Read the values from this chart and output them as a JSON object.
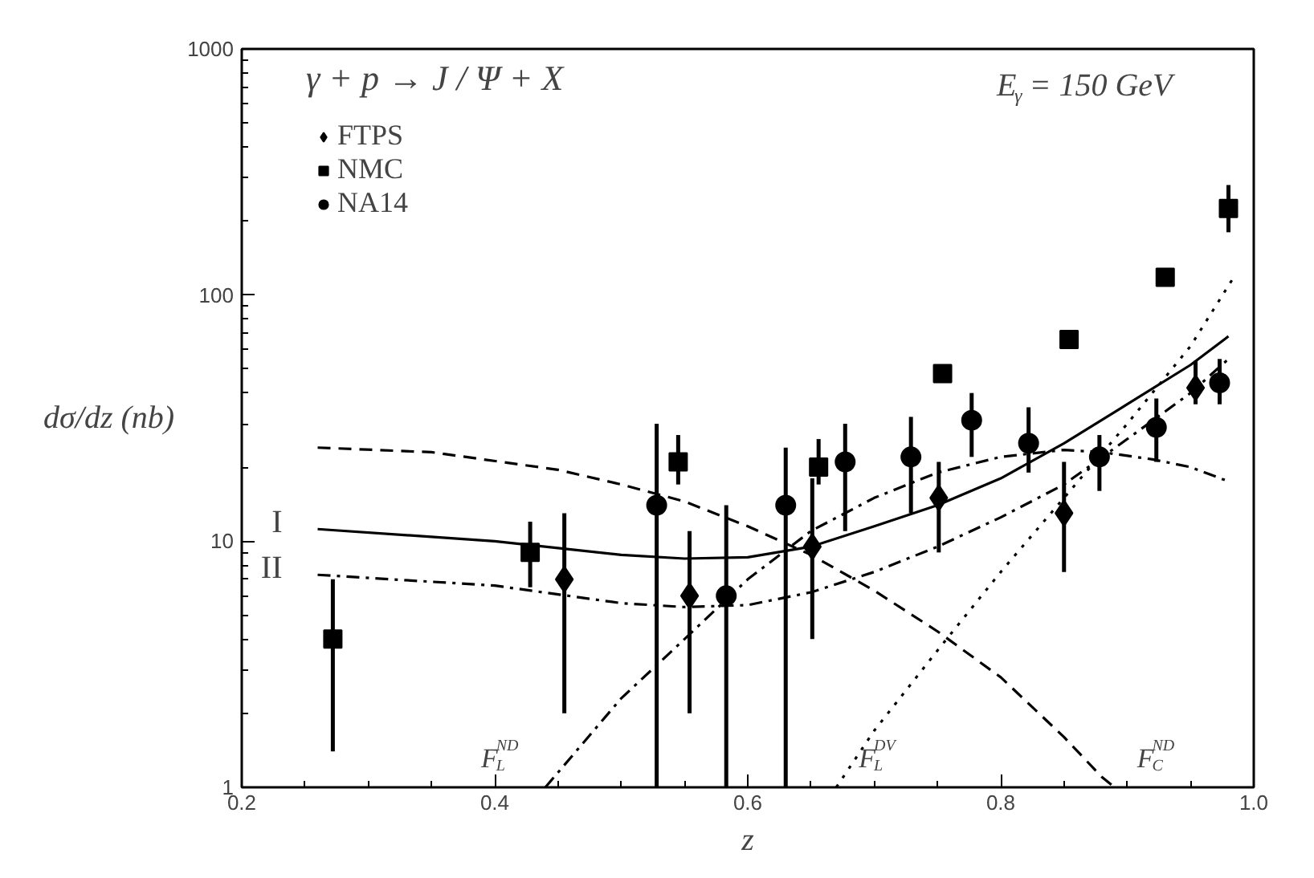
{
  "chart_data": {
    "type": "scatter",
    "xlabel": "z",
    "ylabel": "dσ/dz (nb)",
    "log": "y",
    "grid": false,
    "legend": "top left",
    "xlim": [
      0.2,
      1.0
    ],
    "ylim": [
      1,
      1000
    ],
    "xticks": [
      0.2,
      0.4,
      0.6,
      0.8,
      {
        "value": 1.0,
        "label": "1.0"
      }
    ],
    "yticks": [
      1,
      10,
      100,
      1000
    ],
    "annotations": [
      "γ + p → J / Ψ + X",
      "E$_{γ}$ = 150 GeV",
      "I",
      "II"
    ],
    "series": [
      {
        "name": "FTPS",
        "marker": "diamond",
        "color": "#000000",
        "x": [
          0.455,
          0.554,
          0.651,
          0.751,
          0.85,
          0.954
        ],
        "values": [
          7,
          6,
          9.5,
          15,
          13,
          42
        ],
        "errors": [
          [
            2,
            13
          ],
          [
            2,
            11
          ],
          [
            4,
            18
          ],
          [
            9,
            21
          ],
          [
            7.5,
            21
          ],
          [
            36,
            54
          ]
        ]
      },
      {
        "name": "NMC",
        "marker": "square",
        "color": "#000000",
        "x": [
          0.272,
          0.428,
          0.545,
          0.656,
          0.754,
          0.854,
          0.93,
          0.98
        ],
        "values": [
          4,
          9,
          21,
          20,
          48,
          66,
          118,
          225
        ],
        "errors": [
          [
            1.4,
            7
          ],
          [
            6.5,
            12
          ],
          [
            17,
            27
          ],
          [
            17,
            26
          ],
          null,
          null,
          null,
          [
            180,
            280
          ]
        ]
      },
      {
        "name": "NA14",
        "marker": "circle",
        "color": "#000000",
        "x": [
          0.528,
          0.583,
          0.63,
          0.677,
          0.729,
          0.777,
          0.822,
          0.878,
          0.923,
          0.973
        ],
        "values": [
          14,
          6,
          14,
          21,
          22,
          31,
          25,
          22,
          29,
          44
        ],
        "errors": [
          [
            1,
            30
          ],
          [
            1,
            14
          ],
          [
            1,
            24
          ],
          [
            11,
            30
          ],
          [
            13,
            32
          ],
          [
            22,
            40
          ],
          [
            19,
            35
          ],
          [
            16,
            27
          ],
          [
            21,
            38
          ],
          [
            36,
            55
          ]
        ]
      },
      {
        "type": "line",
        "line_style": "solid",
        "color": "#000000",
        "x": [
          0.26,
          0.4,
          0.5,
          0.55,
          0.6,
          0.65,
          0.7,
          0.75,
          0.8,
          0.85,
          0.9,
          0.95,
          0.98
        ],
        "values": [
          11.2,
          10,
          8.8,
          8.5,
          8.6,
          9.5,
          11.5,
          14,
          18,
          25,
          36,
          52,
          68
        ]
      },
      {
        "type": "line",
        "line_style": "dashdot",
        "color": "#000000",
        "x": [
          0.26,
          0.4,
          0.5,
          0.55,
          0.6,
          0.65,
          0.7,
          0.75,
          0.8,
          0.85,
          0.9,
          0.95,
          0.98
        ],
        "values": [
          7.3,
          6.6,
          5.6,
          5.4,
          5.5,
          6.2,
          7.5,
          9.5,
          12.5,
          17,
          26,
          40,
          55
        ]
      },
      {
        "name": "F$^{ND}$$_{C}$",
        "type": "line",
        "line_style": "dashed",
        "color": "#000000",
        "x": [
          0.26,
          0.35,
          0.45,
          0.5,
          0.55,
          0.6,
          0.65,
          0.7,
          0.75,
          0.8,
          0.85,
          0.88,
          0.89
        ],
        "values": [
          24,
          23,
          19.5,
          17,
          14.5,
          11.5,
          8.8,
          6.3,
          4.3,
          2.8,
          1.6,
          1.1,
          1.0
        ]
      },
      {
        "name": "F$^{ND}$$_{L}$",
        "type": "line",
        "line_style": "dashdot",
        "color": "#000000",
        "x": [
          0.44,
          0.5,
          0.55,
          0.6,
          0.65,
          0.7,
          0.75,
          0.8,
          0.85,
          0.88,
          0.92,
          0.95,
          0.98
        ],
        "values": [
          1,
          2.3,
          4,
          7,
          11,
          15,
          19,
          22,
          23.5,
          23,
          21.5,
          20,
          17.5
        ]
      },
      {
        "name": "F$^{DV}$$_{L}$",
        "type": "line",
        "line_style": "dotted",
        "color": "#000000",
        "x": [
          0.67,
          0.7,
          0.75,
          0.8,
          0.85,
          0.9,
          0.95,
          0.985
        ],
        "values": [
          1,
          1.7,
          3.6,
          7.5,
          15,
          30,
          62,
          120
        ]
      }
    ]
  }
}
